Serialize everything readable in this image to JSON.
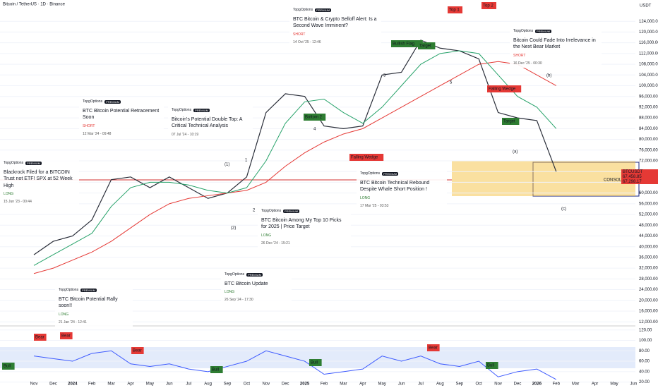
{
  "header": {
    "symbol": "Bitcoin / TetherUS · 1D · Binance",
    "currency": "USDT"
  },
  "chart_data": {
    "type": "line",
    "categories": [
      "Nov",
      "Dec",
      "2024",
      "Feb",
      "Mar",
      "Apr",
      "May",
      "Jun",
      "Jul",
      "Aug",
      "Sep",
      "Oct",
      "Nov",
      "Dec",
      "2025",
      "Feb",
      "Mar",
      "Apr",
      "May",
      "Jun",
      "Jul",
      "Aug",
      "Sep",
      "Oct",
      "Nov",
      "Dec",
      "2026",
      "Feb",
      "Mar",
      "Apr",
      "May",
      "Jun"
    ],
    "series": [
      {
        "color": "#2a2e39",
        "values": [
          37000,
          42000,
          44000,
          50000,
          65000,
          66000,
          62000,
          66000,
          62000,
          58000,
          60000,
          66000,
          90000,
          97000,
          96000,
          85000,
          84000,
          85000,
          104000,
          105000,
          117000,
          114000,
          113000,
          110000,
          90000,
          88000,
          87000,
          68000,
          null,
          null,
          null,
          null
        ]
      },
      {
        "color": "#e53935",
        "values": [
          30000,
          32000,
          35000,
          38000,
          42000,
          47000,
          52000,
          56000,
          58000,
          59000,
          60000,
          61000,
          64000,
          70000,
          75000,
          79000,
          82000,
          84000,
          88000,
          92000,
          96000,
          100000,
          104000,
          108000,
          109000,
          108000,
          104000,
          100000,
          null,
          null,
          null,
          null
        ]
      },
      {
        "color": "#26a269",
        "values": [
          33000,
          37000,
          41000,
          45000,
          55000,
          62000,
          64000,
          64000,
          63000,
          61000,
          60000,
          62000,
          72000,
          86000,
          94000,
          95000,
          90000,
          86000,
          92000,
          100000,
          108000,
          112000,
          113000,
          112000,
          104000,
          96000,
          92000,
          84000,
          null,
          null,
          null,
          null
        ]
      }
    ],
    "rsi": {
      "color": "#3d5afe",
      "values": [
        70,
        65,
        60,
        75,
        80,
        55,
        50,
        55,
        45,
        40,
        50,
        60,
        80,
        70,
        60,
        35,
        40,
        45,
        70,
        60,
        70,
        55,
        50,
        60,
        30,
        40,
        45,
        25,
        null,
        null,
        null,
        null
      ]
    },
    "ylim": [
      11000,
      128000
    ],
    "yticks": [
      {
        "value": 124000,
        "label": "124,000.00"
      },
      {
        "value": 120000,
        "label": "120,000.00"
      },
      {
        "value": 116000,
        "label": "116,000.00"
      },
      {
        "value": 112000,
        "label": "112,000.00"
      },
      {
        "value": 108000,
        "label": "108,000.00"
      },
      {
        "value": 104000,
        "label": "104,000.00"
      },
      {
        "value": 100000,
        "label": "100,000.00"
      },
      {
        "value": 96000,
        "label": "96,000.00"
      },
      {
        "value": 92000,
        "label": "92,000.00"
      },
      {
        "value": 88000,
        "label": "88,000.00"
      },
      {
        "value": 84000,
        "label": "84,000.00"
      },
      {
        "value": 80000,
        "label": "80,000.00"
      },
      {
        "value": 76000,
        "label": "76,000.00"
      },
      {
        "value": 72000,
        "label": "72,000.00"
      },
      {
        "value": 68000,
        "label": "68,000.00"
      },
      {
        "value": 64000,
        "label": "64,000.00"
      },
      {
        "value": 60000,
        "label": "60,000.00"
      },
      {
        "value": 56000,
        "label": "56,000.00"
      },
      {
        "value": 52000,
        "label": "52,000.00"
      },
      {
        "value": 48000,
        "label": "48,000.00"
      },
      {
        "value": 44000,
        "label": "44,000.00"
      },
      {
        "value": 40000,
        "label": "40,000.00"
      },
      {
        "value": 36000,
        "label": "36,000.00"
      },
      {
        "value": 32000,
        "label": "32,000.00"
      },
      {
        "value": 28000,
        "label": "28,000.00"
      },
      {
        "value": 24000,
        "label": "24,000.00"
      },
      {
        "value": 20000,
        "label": "20,000.00"
      },
      {
        "value": 16000,
        "label": "16,000.00"
      },
      {
        "value": 12000,
        "label": "12,000.00"
      }
    ],
    "y2lim": [
      10,
      125
    ],
    "y2ticks": [
      {
        "value": 120,
        "label": "120.00"
      },
      {
        "value": 100,
        "label": "100.00"
      },
      {
        "value": 80,
        "label": "80.00"
      },
      {
        "value": 60,
        "label": "60.00"
      },
      {
        "value": 40,
        "label": "40.00"
      },
      {
        "value": 20,
        "label": "20.00"
      }
    ],
    "price_tags": [
      "BTCUSDT",
      "67,458.85",
      "67,298.17"
    ],
    "annotations": [
      "(1)",
      "(2)",
      "1",
      "2",
      "3",
      "4",
      "5",
      "(a)",
      "(b)",
      "(c)",
      "Top 1",
      "Top 2",
      "Target",
      "Falling Wedge",
      "Bullish Flag",
      "Falling Wedge",
      "Target",
      "Bottom 2",
      "CONSOLIDATION",
      "Bear",
      "Bear",
      "Bear",
      "Bear",
      "Bull",
      "Bull",
      "Bull",
      "Bull"
    ]
  },
  "cards": {
    "author": "TopgOptions",
    "badge": "PREMIUM",
    "items": [
      {
        "title": "Blackrock Filed for a BITCOIN Trust not ETF! SPX at 52 Week High",
        "side": "LONG",
        "date": "15 Jun '23 - 00:44"
      },
      {
        "title": "BTC Bitcoin Potential Retracement Soon",
        "side": "SHORT",
        "date": "12 Mar '24 - 09:48"
      },
      {
        "title": "Bitcoin's Potential Double Top: A Critical Technical Analysis",
        "date": "07 Jul '24 - 10:19"
      },
      {
        "title": "BTC Bitcoin & Crypto Selloff Alert: Is a Second Wave Imminent?",
        "side": "SHORT",
        "date": "14 Oct '25 - 12:46"
      },
      {
        "title": "Bitcoin Could Fade Into Irrelevance in the Next Bear Market",
        "side": "SHORT",
        "date": "16 Dec '25 - 00:30"
      },
      {
        "title": "BTC Bitcoin Among My Top 10 Picks for 2025 | Price Target",
        "side": "LONG",
        "date": "26 Dec '24 - 15:21"
      },
      {
        "title": "BTC Bitcoin Technical Rebound Despite Whale Short Position !",
        "side": "LONG",
        "date": "17 Mar '25 - 03:53"
      },
      {
        "title": "BTC Bitcoin Update",
        "side": "LONG",
        "date": "26 Sep '24 - 17:30"
      },
      {
        "title": "BTC Bitcoin Potential Rally soon!!",
        "side": "LONG",
        "date": "21 Jan '24 - 12:41"
      }
    ]
  }
}
